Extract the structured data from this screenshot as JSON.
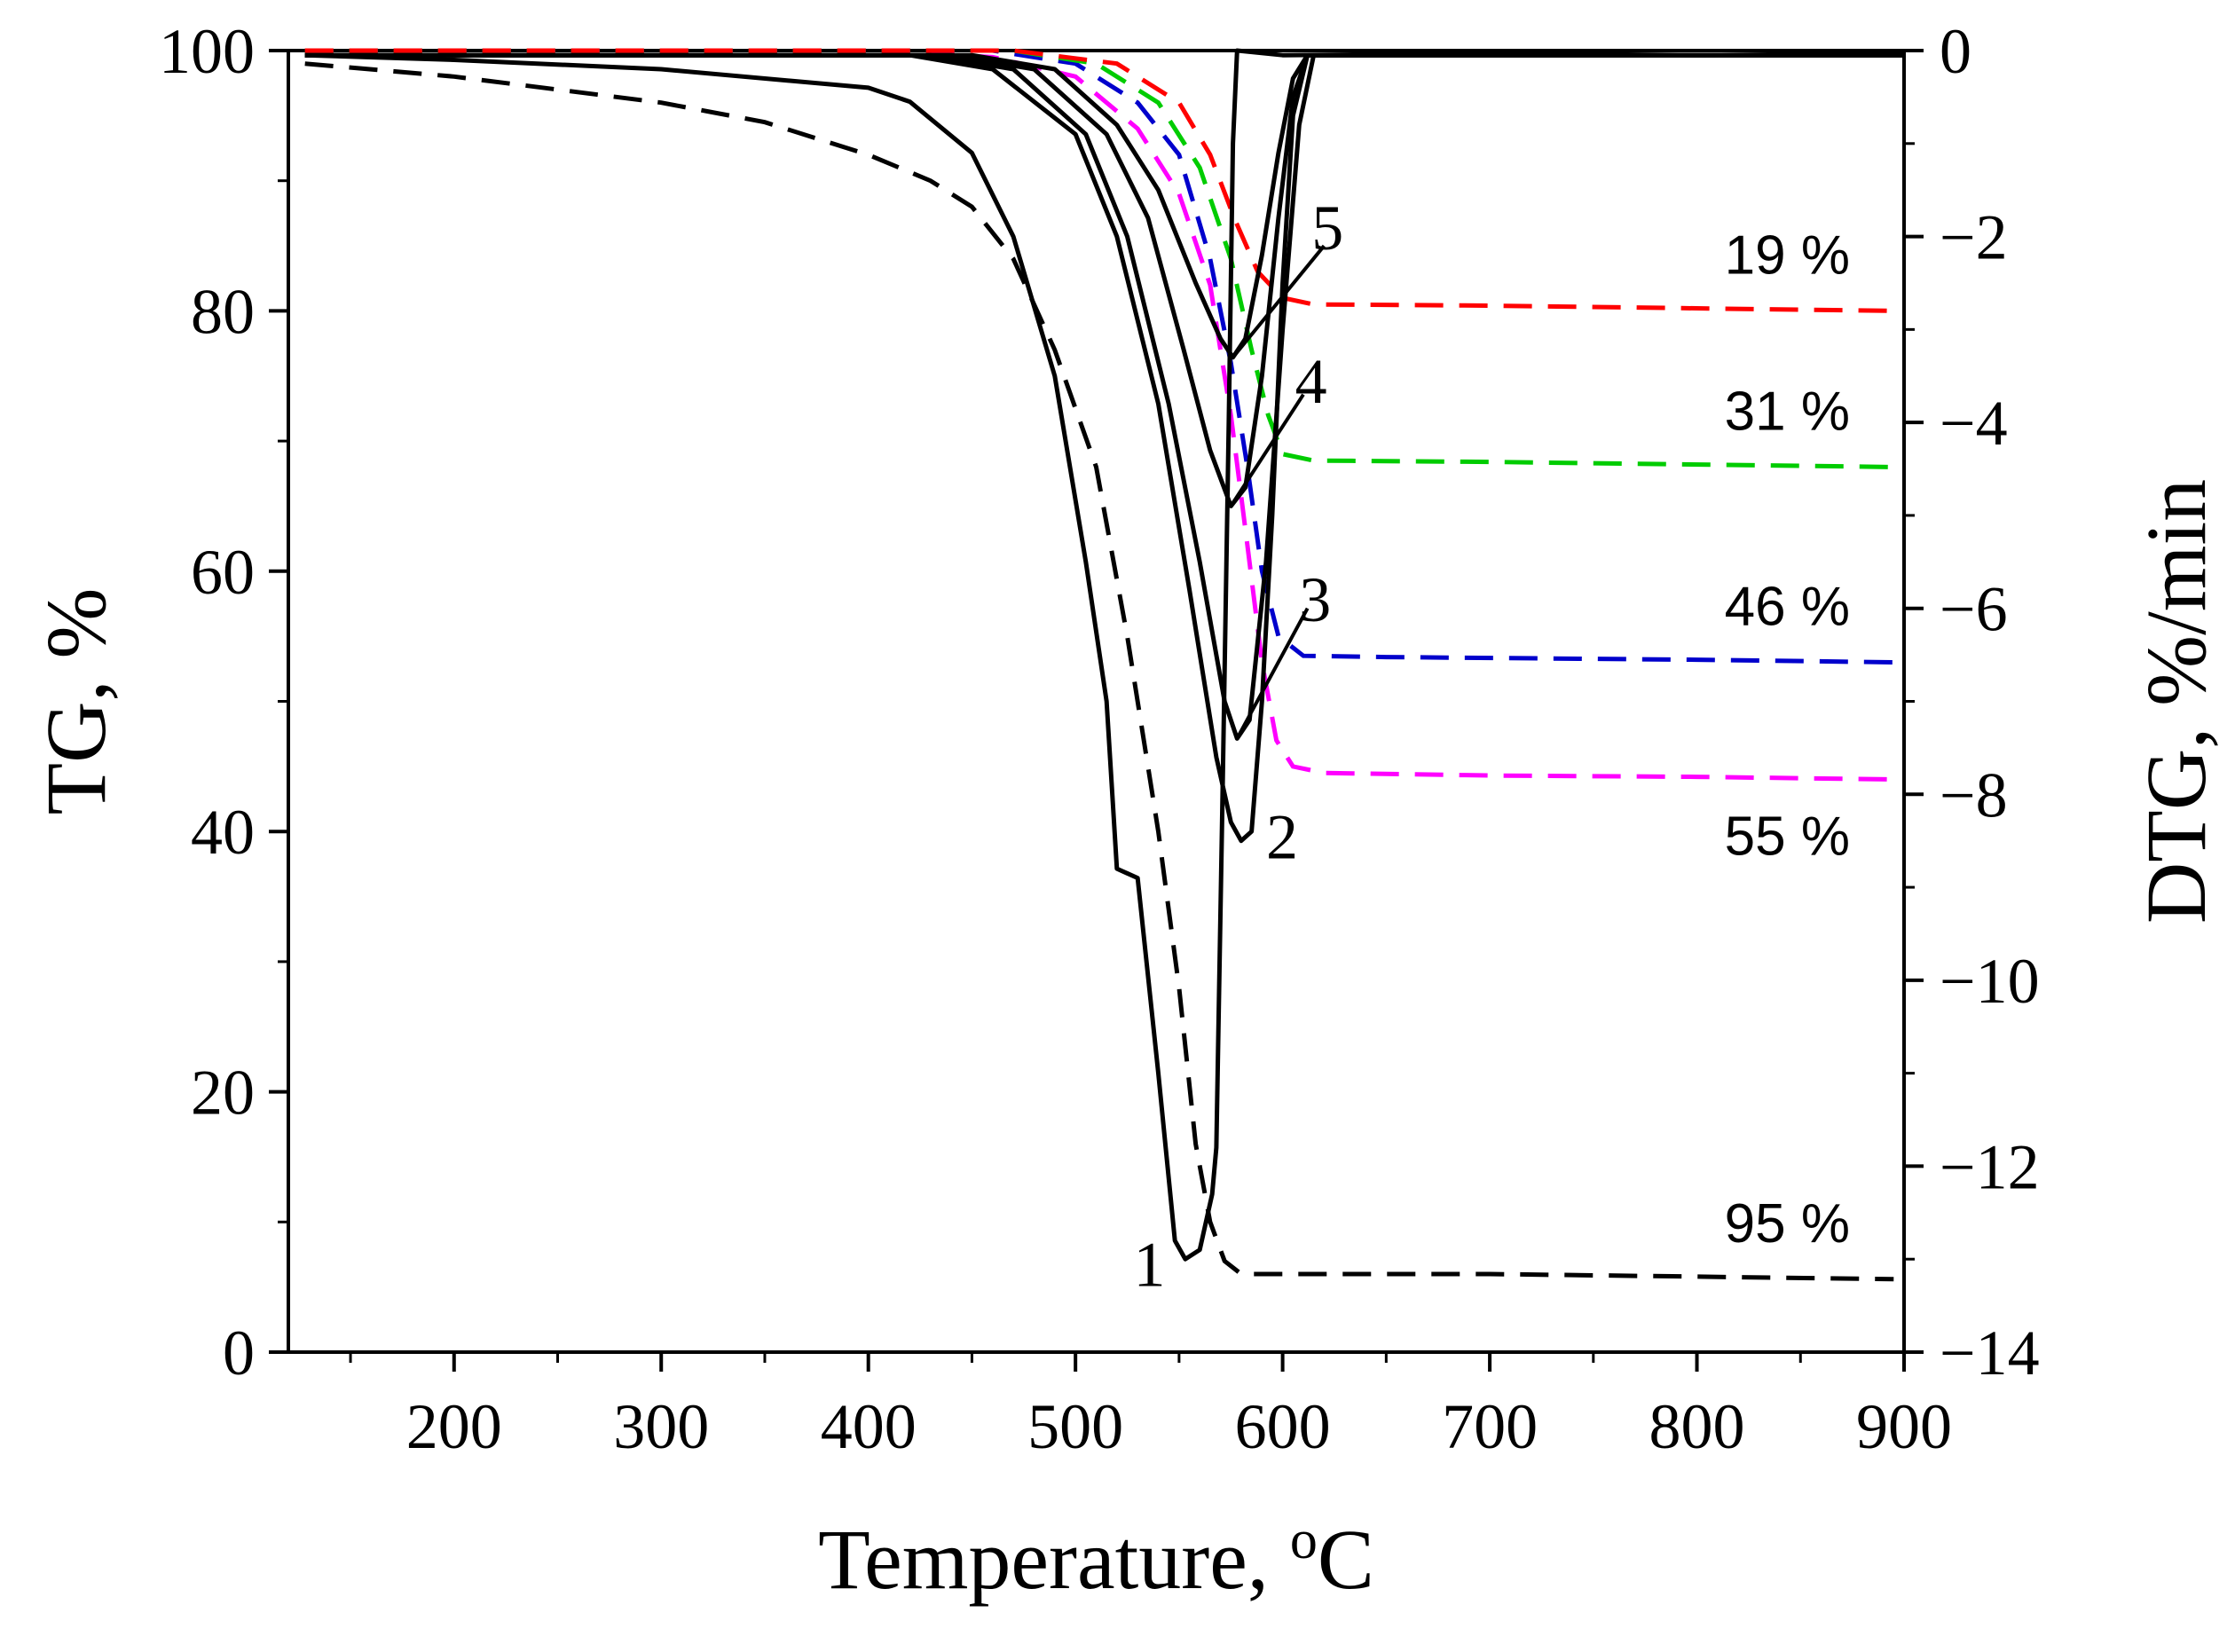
{
  "chart_data": {
    "type": "line",
    "title": "",
    "xlabel": "Temperature, ",
    "xlabel_sup": "o",
    "xlabel_unit": "C",
    "ylabel": "TG, %",
    "y2label": "DTG, %/min",
    "xlim": [
      120,
      900
    ],
    "ylim": [
      0,
      100
    ],
    "y2lim": [
      -14,
      0
    ],
    "xticks": [
      200,
      300,
      400,
      500,
      600,
      700,
      800,
      900
    ],
    "yticks": [
      0,
      20,
      40,
      60,
      80,
      100
    ],
    "y2ticks": [
      0,
      -2,
      -4,
      -6,
      -8,
      -10,
      -12,
      -14
    ],
    "y2tick_labels": [
      "0",
      "−2",
      "−4",
      "−6",
      "−8",
      "−10",
      "−12",
      "−14"
    ],
    "grid": false,
    "tg_series": [
      {
        "name": "TG 1",
        "color": "#000000",
        "final_label": "95 %",
        "points": [
          [
            128,
            99
          ],
          [
            200,
            98
          ],
          [
            300,
            96
          ],
          [
            350,
            94.5
          ],
          [
            400,
            92
          ],
          [
            430,
            90
          ],
          [
            450,
            88
          ],
          [
            470,
            84
          ],
          [
            490,
            77
          ],
          [
            510,
            68
          ],
          [
            525,
            55
          ],
          [
            540,
            40
          ],
          [
            550,
            28
          ],
          [
            558,
            16
          ],
          [
            565,
            10
          ],
          [
            572,
            7
          ],
          [
            580,
            6
          ],
          [
            600,
            6
          ],
          [
            700,
            6
          ],
          [
            800,
            5.8
          ],
          [
            895,
            5.6
          ]
        ]
      },
      {
        "name": "TG 2",
        "color": "#ff00ff",
        "final_label": "55 %",
        "points": [
          [
            128,
            100
          ],
          [
            400,
            100
          ],
          [
            460,
            99.5
          ],
          [
            500,
            98
          ],
          [
            530,
            94
          ],
          [
            550,
            89
          ],
          [
            565,
            82
          ],
          [
            575,
            72
          ],
          [
            583,
            62
          ],
          [
            590,
            53
          ],
          [
            597,
            47
          ],
          [
            605,
            45
          ],
          [
            620,
            44.5
          ],
          [
            700,
            44.3
          ],
          [
            800,
            44.2
          ],
          [
            895,
            44
          ]
        ]
      },
      {
        "name": "TG 3",
        "color": "#0000cc",
        "final_label": "46 %",
        "points": [
          [
            128,
            100
          ],
          [
            460,
            100
          ],
          [
            500,
            99
          ],
          [
            530,
            96
          ],
          [
            550,
            92
          ],
          [
            565,
            84
          ],
          [
            575,
            76
          ],
          [
            583,
            68
          ],
          [
            590,
            60
          ],
          [
            598,
            55
          ],
          [
            610,
            53.5
          ],
          [
            650,
            53.4
          ],
          [
            800,
            53.2
          ],
          [
            895,
            53
          ]
        ]
      },
      {
        "name": "TG 4",
        "color": "#00cc00",
        "final_label": "31 %",
        "points": [
          [
            128,
            100
          ],
          [
            470,
            100
          ],
          [
            510,
            99
          ],
          [
            540,
            96
          ],
          [
            560,
            91
          ],
          [
            575,
            84
          ],
          [
            585,
            77
          ],
          [
            593,
            72
          ],
          [
            600,
            69
          ],
          [
            615,
            68.5
          ],
          [
            700,
            68.4
          ],
          [
            895,
            68
          ]
        ]
      },
      {
        "name": "TG 5",
        "color": "#ff0000",
        "final_label": "19 %",
        "points": [
          [
            128,
            100
          ],
          [
            470,
            100
          ],
          [
            520,
            99
          ],
          [
            550,
            96
          ],
          [
            565,
            92
          ],
          [
            577,
            87
          ],
          [
            588,
            83
          ],
          [
            600,
            81
          ],
          [
            615,
            80.5
          ],
          [
            700,
            80.4
          ],
          [
            895,
            80
          ]
        ]
      }
    ],
    "dtg_series": [
      {
        "name": "DTG 1",
        "label": "1",
        "color": "#000000",
        "points": [
          [
            128,
            -0.05
          ],
          [
            200,
            -0.1
          ],
          [
            300,
            -0.2
          ],
          [
            400,
            -0.4
          ],
          [
            420,
            -0.55
          ],
          [
            450,
            -1.1
          ],
          [
            470,
            -2
          ],
          [
            490,
            -3.5
          ],
          [
            505,
            -5.5
          ],
          [
            515,
            -7
          ],
          [
            520,
            -8.8
          ],
          [
            530,
            -8.9
          ],
          [
            540,
            -11
          ],
          [
            548,
            -12.8
          ],
          [
            553,
            -13
          ],
          [
            560,
            -12.9
          ],
          [
            566,
            -12.3
          ],
          [
            568,
            -11.8
          ],
          [
            571,
            -8
          ],
          [
            574,
            -4
          ],
          [
            576,
            -1
          ],
          [
            578,
            0
          ],
          [
            600,
            -0.05
          ],
          [
            700,
            -0.03
          ],
          [
            800,
            -0.05
          ],
          [
            900,
            -0.03
          ]
        ]
      },
      {
        "name": "DTG 2",
        "label": "2",
        "color": "#000000",
        "points": [
          [
            128,
            -0.05
          ],
          [
            420,
            -0.05
          ],
          [
            460,
            -0.2
          ],
          [
            500,
            -0.9
          ],
          [
            520,
            -2
          ],
          [
            540,
            -3.8
          ],
          [
            555,
            -5.8
          ],
          [
            568,
            -7.6
          ],
          [
            575,
            -8.3
          ],
          [
            580,
            -8.5
          ],
          [
            585,
            -8.4
          ],
          [
            590,
            -7
          ],
          [
            595,
            -5
          ],
          [
            600,
            -2.5
          ],
          [
            605,
            -0.7
          ],
          [
            612,
            -0.05
          ],
          [
            900,
            -0.05
          ]
        ]
      },
      {
        "name": "DTG 3",
        "label": "3",
        "color": "#000000",
        "points": [
          [
            128,
            -0.05
          ],
          [
            430,
            -0.05
          ],
          [
            470,
            -0.2
          ],
          [
            505,
            -0.9
          ],
          [
            525,
            -2
          ],
          [
            545,
            -3.8
          ],
          [
            560,
            -5.5
          ],
          [
            572,
            -7
          ],
          [
            578,
            -7.4
          ],
          [
            584,
            -7.2
          ],
          [
            592,
            -5.5
          ],
          [
            600,
            -3
          ],
          [
            608,
            -0.8
          ],
          [
            615,
            -0.05
          ],
          [
            900,
            -0.05
          ]
        ]
      },
      {
        "name": "DTG 4",
        "label": "4",
        "color": "#000000",
        "points": [
          [
            128,
            -0.05
          ],
          [
            440,
            -0.05
          ],
          [
            480,
            -0.2
          ],
          [
            515,
            -0.9
          ],
          [
            535,
            -1.8
          ],
          [
            552,
            -3.2
          ],
          [
            565,
            -4.3
          ],
          [
            575,
            -4.9
          ],
          [
            582,
            -4.7
          ],
          [
            590,
            -3.5
          ],
          [
            598,
            -1.8
          ],
          [
            605,
            -0.5
          ],
          [
            612,
            -0.05
          ],
          [
            900,
            -0.05
          ]
        ]
      },
      {
        "name": "DTG 5",
        "label": "5",
        "color": "#000000",
        "points": [
          [
            128,
            -0.05
          ],
          [
            450,
            -0.05
          ],
          [
            490,
            -0.2
          ],
          [
            520,
            -0.8
          ],
          [
            540,
            -1.5
          ],
          [
            558,
            -2.5
          ],
          [
            570,
            -3.1
          ],
          [
            576,
            -3.3
          ],
          [
            582,
            -3.1
          ],
          [
            590,
            -2.2
          ],
          [
            598,
            -1.1
          ],
          [
            605,
            -0.3
          ],
          [
            612,
            -0.05
          ],
          [
            900,
            -0.05
          ]
        ]
      }
    ],
    "annotations": [
      {
        "text": "1",
        "kind": "curve-number"
      },
      {
        "text": "2",
        "kind": "curve-number"
      },
      {
        "text": "3",
        "kind": "curve-number"
      },
      {
        "text": "4",
        "kind": "curve-number"
      },
      {
        "text": "5",
        "kind": "curve-number"
      }
    ]
  }
}
